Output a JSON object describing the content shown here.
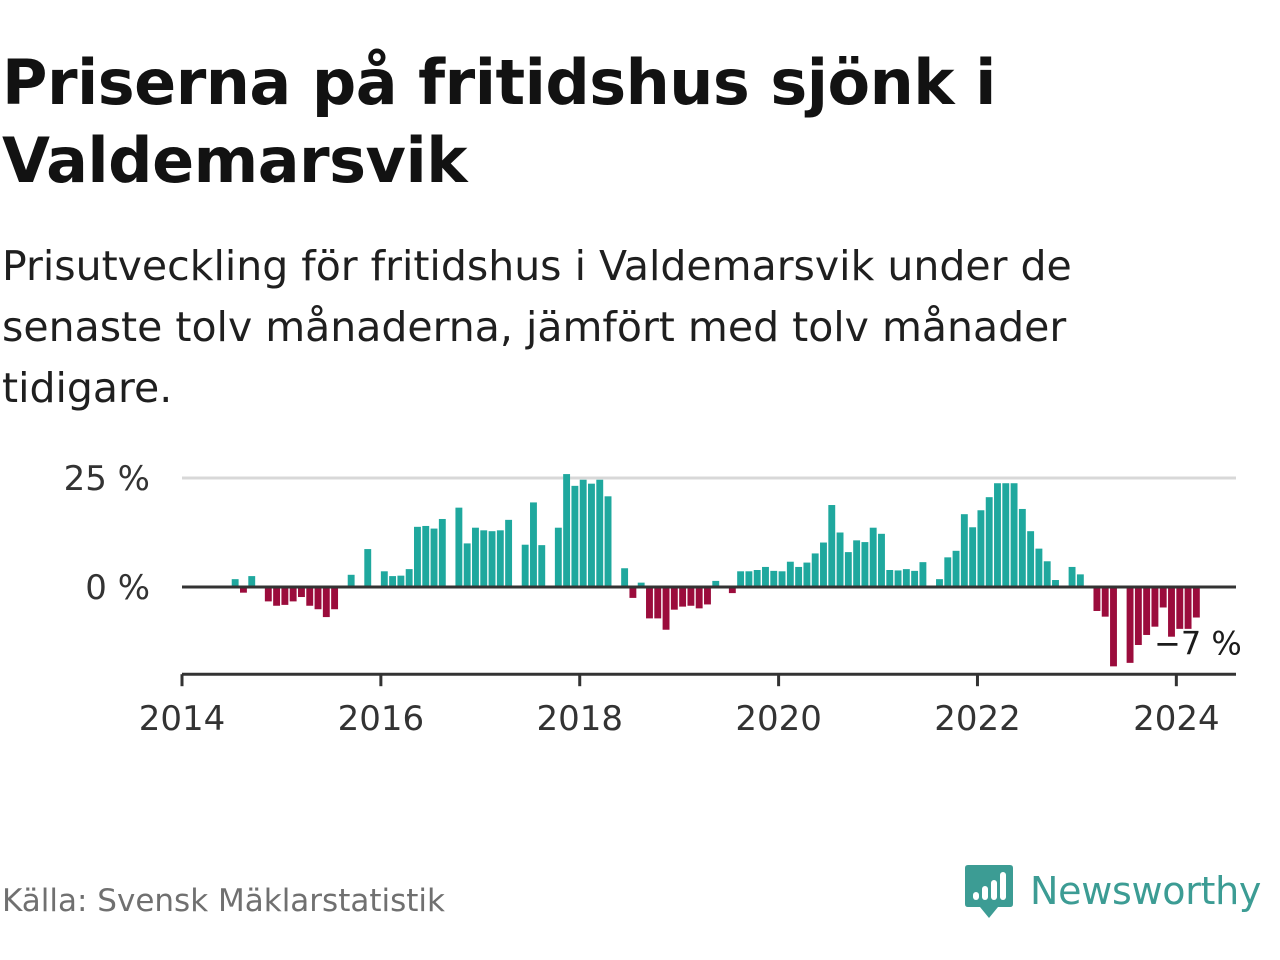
{
  "title": "Priserna på fritidshus sjönk i Valdemarsvik",
  "subtitle": "Prisutveckling för fritidshus i Valdemarsvik under de senaste tolv månaderna, jämfört med tolv månader tidigare.",
  "source": "Källa: Svensk Mäklarstatistik",
  "brand": {
    "name": "Newsworthy",
    "icon": "newsworthy-logo-icon",
    "color": "#3c9c94"
  },
  "colors": {
    "positive": "#1fa89e",
    "negative": "#9b0c3c",
    "grid": "#d8d8d8",
    "axis": "#333333"
  },
  "chart_data": {
    "type": "bar",
    "title": "Priserna på fritidshus sjönk i Valdemarsvik",
    "xlabel": "",
    "ylabel": "",
    "unit": "%",
    "ylim": [
      -20,
      25
    ],
    "yticks": [
      {
        "value": 25,
        "label": "25 %"
      },
      {
        "value": 0,
        "label": "0 %"
      }
    ],
    "xlim": [
      2014.0,
      2024.6
    ],
    "xticks": [
      {
        "value": 2014,
        "label": "2014"
      },
      {
        "value": 2016,
        "label": "2016"
      },
      {
        "value": 2018,
        "label": "2018"
      },
      {
        "value": 2020,
        "label": "2020"
      },
      {
        "value": 2022,
        "label": "2022"
      },
      {
        "value": 2024,
        "label": "2024"
      }
    ],
    "start_year": 2014,
    "start_month": 7,
    "grid": true,
    "annotation": {
      "label": "−7 %",
      "value": -7
    },
    "values": [
      1.8,
      -1.3,
      2.5,
      0,
      -3.3,
      -4.3,
      -4.1,
      -3.3,
      -2.3,
      -4.3,
      -5.1,
      -6.9,
      -5.1,
      0,
      2.8,
      0,
      8.7,
      0,
      3.6,
      2.5,
      2.6,
      4.1,
      13.8,
      14.0,
      13.4,
      15.6,
      0,
      18.2,
      10.0,
      13.6,
      13.0,
      12.8,
      13.0,
      15.4,
      0,
      9.7,
      19.4,
      9.6,
      0,
      13.6,
      25.9,
      23.2,
      24.6,
      23.7,
      24.6,
      20.8,
      0,
      4.3,
      -2.5,
      1.0,
      -7.2,
      -7.2,
      -9.8,
      -5.2,
      -4.5,
      -4.3,
      -4.9,
      -4.0,
      1.4,
      0,
      -1.4,
      3.6,
      3.6,
      3.9,
      4.6,
      3.7,
      3.6,
      5.8,
      4.6,
      5.6,
      7.7,
      10.2,
      18.8,
      12.5,
      8.0,
      10.7,
      10.3,
      13.6,
      12.2,
      3.9,
      3.8,
      4.1,
      3.7,
      5.7,
      0,
      1.8,
      6.8,
      8.3,
      16.7,
      13.7,
      17.6,
      20.6,
      23.8,
      23.8,
      23.8,
      17.9,
      12.8,
      8.8,
      5.9,
      1.6,
      0,
      4.6,
      2.9,
      0,
      -5.5,
      -6.8,
      -18.2,
      0,
      -17.4,
      -13.3,
      -11.0,
      -9.1,
      -4.7,
      -11.4,
      -9.6,
      -9.6,
      -7.0
    ]
  }
}
